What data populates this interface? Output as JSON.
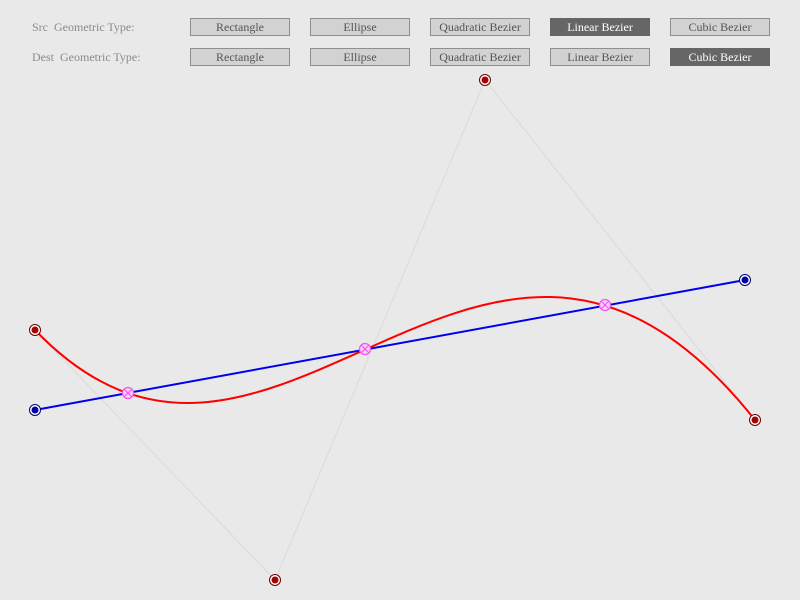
{
  "toolbar": {
    "src_label": "Src  Geometric Type:",
    "dest_label": "Dest  Geometric Type:",
    "types": [
      "Rectangle",
      "Ellipse",
      "Quadratic Bezier",
      "Linear Bezier",
      "Cubic Bezier"
    ],
    "src_selected": "Linear Bezier",
    "dest_selected": "Cubic Bezier"
  },
  "colors": {
    "background": "#e9e9e9",
    "button": "#d2d2d2",
    "button_selected": "#666666",
    "linear_curve": "#0000ee",
    "cubic_curve": "#ff0000",
    "control_polygon": "#dddddd",
    "intersection": "#ee66ee"
  }
}
